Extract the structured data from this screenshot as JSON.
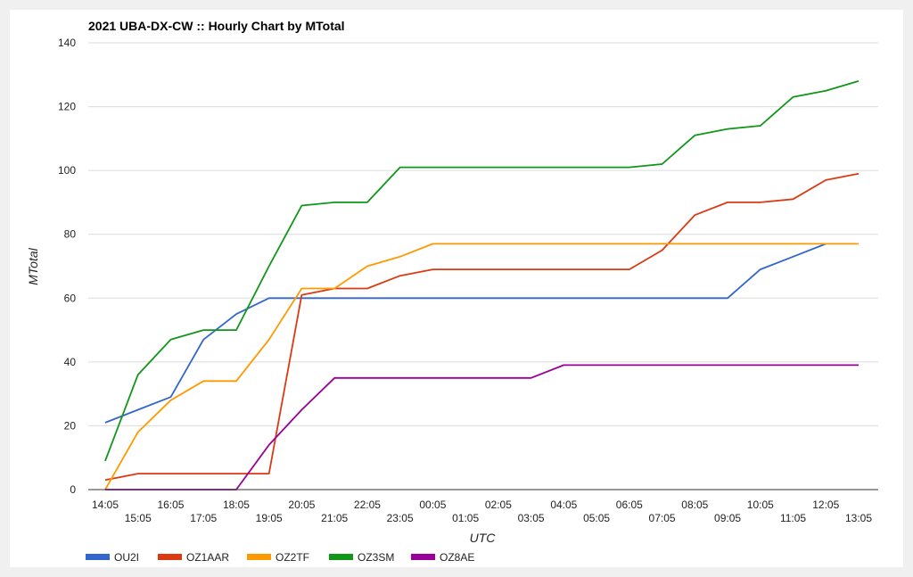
{
  "chart_data": {
    "type": "line",
    "title": "2021 UBA-DX-CW :: Hourly Chart by MTotal",
    "xlabel": "UTC",
    "ylabel": "MTotal",
    "ylim": [
      0,
      140
    ],
    "yticks": [
      0,
      20,
      40,
      60,
      80,
      100,
      120,
      140
    ],
    "grid": true,
    "legend_position": "bottom",
    "categories": [
      "14:05",
      "15:05",
      "16:05",
      "17:05",
      "18:05",
      "19:05",
      "20:05",
      "21:05",
      "22:05",
      "23:05",
      "00:05",
      "01:05",
      "02:05",
      "03:05",
      "04:05",
      "05:05",
      "06:05",
      "07:05",
      "08:05",
      "09:05",
      "10:05",
      "11:05",
      "12:05",
      "13:05"
    ],
    "series": [
      {
        "name": "OU2I",
        "color": "#3366cc",
        "values": [
          21,
          25,
          29,
          47,
          55,
          60,
          60,
          60,
          60,
          60,
          60,
          60,
          60,
          60,
          60,
          60,
          60,
          60,
          60,
          60,
          69,
          73,
          77,
          null
        ]
      },
      {
        "name": "OZ1AAR",
        "color": "#dc3912",
        "values": [
          3,
          5,
          5,
          5,
          5,
          5,
          61,
          63,
          63,
          67,
          69,
          69,
          69,
          69,
          69,
          69,
          69,
          75,
          86,
          90,
          90,
          91,
          97,
          99
        ]
      },
      {
        "name": "OZ2TF",
        "color": "#ff9900",
        "values": [
          0,
          18,
          28,
          34,
          34,
          47,
          63,
          63,
          70,
          73,
          77,
          77,
          77,
          77,
          77,
          77,
          77,
          77,
          77,
          77,
          77,
          77,
          77,
          77
        ]
      },
      {
        "name": "OZ3SM",
        "color": "#109618",
        "values": [
          9,
          36,
          47,
          50,
          50,
          70,
          89,
          90,
          90,
          101,
          101,
          101,
          101,
          101,
          101,
          101,
          101,
          102,
          111,
          113,
          114,
          123,
          125,
          128
        ]
      },
      {
        "name": "OZ8AE",
        "color": "#990099",
        "values": [
          0,
          0,
          0,
          0,
          0,
          14,
          25,
          35,
          35,
          35,
          35,
          35,
          35,
          35,
          39,
          39,
          39,
          39,
          39,
          39,
          39,
          39,
          39,
          39
        ]
      }
    ]
  }
}
